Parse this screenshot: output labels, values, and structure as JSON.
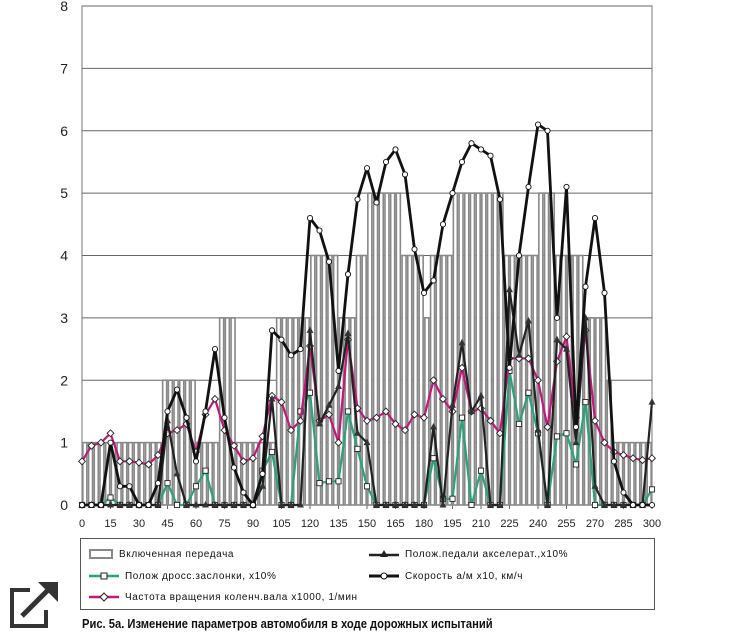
{
  "chart_data": {
    "type": "line",
    "title": "",
    "xlabel": "",
    "ylabel": "",
    "xlim": [
      0,
      300
    ],
    "ylim": [
      0,
      8
    ],
    "x_ticks": [
      0,
      15,
      30,
      45,
      60,
      75,
      90,
      105,
      120,
      135,
      150,
      165,
      180,
      195,
      210,
      225,
      240,
      255,
      270,
      285,
      300
    ],
    "y_ticks": [
      0,
      1,
      2,
      3,
      4,
      5,
      6,
      7,
      8
    ],
    "grid": "horizontal",
    "legend_position": "bottom",
    "colors": {
      "gear": "#888888",
      "pedal": "#222222",
      "throttle": "#2aa37a",
      "speed": "#111111",
      "rpm": "#c2187a"
    },
    "series": [
      {
        "key": "gear",
        "name": "Включенная передача",
        "type": "bar",
        "x": [
          0,
          3,
          6,
          9,
          12,
          15,
          18,
          21,
          24,
          27,
          30,
          33,
          36,
          39,
          42,
          45,
          48,
          51,
          54,
          57,
          60,
          63,
          66,
          69,
          72,
          75,
          78,
          81,
          84,
          87,
          90,
          93,
          96,
          99,
          102,
          105,
          108,
          111,
          114,
          117,
          120,
          123,
          126,
          129,
          132,
          135,
          138,
          141,
          144,
          147,
          150,
          153,
          156,
          159,
          162,
          165,
          168,
          171,
          174,
          177,
          180,
          183,
          186,
          189,
          192,
          195,
          198,
          201,
          204,
          207,
          210,
          213,
          216,
          219,
          222,
          225,
          228,
          231,
          234,
          237,
          240,
          243,
          246,
          249,
          252,
          255,
          258,
          261,
          264,
          267,
          270,
          273,
          276,
          279,
          282,
          285,
          288,
          291,
          294,
          297
        ],
        "values": [
          1,
          1,
          1,
          1,
          1,
          1,
          1,
          1,
          1,
          1,
          1,
          1,
          1,
          1,
          2,
          2,
          2,
          2,
          2,
          2,
          1,
          1,
          1,
          1,
          3,
          3,
          3,
          1,
          1,
          1,
          1,
          1,
          1,
          1,
          3,
          3,
          3,
          3,
          3,
          3,
          4,
          4,
          4,
          4,
          4,
          3,
          3,
          3,
          4,
          4,
          5,
          5,
          5,
          5,
          5,
          5,
          4,
          4,
          4,
          4,
          3,
          4,
          4,
          4,
          4,
          5,
          5,
          5,
          5,
          5,
          5,
          5,
          5,
          5,
          4,
          4,
          4,
          4,
          4,
          4,
          5,
          5,
          5,
          4,
          4,
          4,
          4,
          4,
          3,
          3,
          3,
          3,
          2,
          1,
          1,
          1,
          1,
          1,
          1,
          1
        ]
      },
      {
        "key": "pedal",
        "name": "Полож.педали акселерат.,х10%",
        "type": "line",
        "x": [
          0,
          5,
          10,
          15,
          20,
          25,
          30,
          35,
          40,
          45,
          50,
          55,
          60,
          65,
          70,
          75,
          80,
          85,
          90,
          95,
          100,
          105,
          110,
          115,
          120,
          125,
          130,
          135,
          140,
          145,
          150,
          155,
          160,
          165,
          170,
          175,
          180,
          185,
          190,
          195,
          200,
          205,
          210,
          215,
          220,
          225,
          230,
          235,
          240,
          245,
          250,
          255,
          260,
          265,
          270,
          275,
          280,
          285,
          290,
          295,
          300
        ],
        "values": [
          0,
          0,
          0,
          0,
          0,
          0,
          0,
          0,
          0,
          1.35,
          0.5,
          0,
          0,
          0,
          0,
          0,
          0,
          0,
          0,
          0.3,
          1.7,
          0,
          0,
          0,
          2.8,
          1.3,
          1.6,
          1.9,
          2.75,
          1.15,
          1.0,
          0,
          0,
          0,
          0,
          0,
          0,
          1.25,
          0,
          1.6,
          2.6,
          1.5,
          1.75,
          0,
          0,
          3.45,
          2.4,
          2.95,
          1.2,
          0,
          2.65,
          2.5,
          1.0,
          3.0,
          0.3,
          0,
          0,
          0,
          0,
          0,
          1.65
        ]
      },
      {
        "key": "throttle",
        "name": "Полож дросс.заслонки, х10%",
        "type": "line",
        "x": [
          0,
          5,
          10,
          15,
          20,
          25,
          30,
          35,
          40,
          45,
          50,
          55,
          60,
          65,
          70,
          75,
          80,
          85,
          90,
          95,
          100,
          105,
          110,
          115,
          120,
          125,
          130,
          135,
          140,
          145,
          150,
          155,
          160,
          165,
          170,
          175,
          180,
          185,
          190,
          195,
          200,
          205,
          210,
          215,
          220,
          225,
          230,
          235,
          240,
          245,
          250,
          255,
          260,
          265,
          270,
          275,
          280,
          285,
          290,
          295,
          300
        ],
        "values": [
          0,
          0,
          0,
          0.12,
          0,
          0,
          0,
          0,
          0,
          0.35,
          0,
          0,
          0.3,
          0.55,
          0,
          0,
          0,
          0,
          0,
          0.55,
          0.85,
          0,
          0,
          1.5,
          1.8,
          0.35,
          0.38,
          0.38,
          1.5,
          0.9,
          0.3,
          0,
          0,
          0,
          0,
          0,
          0,
          0.75,
          0.1,
          0.1,
          1.4,
          0,
          0.55,
          0,
          0,
          2.15,
          1.3,
          1.8,
          1.15,
          0,
          1.1,
          1.15,
          0.65,
          1.65,
          0,
          0,
          0,
          0,
          0,
          0,
          0.25
        ]
      },
      {
        "key": "speed",
        "name": "Скорость а/м х10, км/ч",
        "type": "line",
        "x": [
          0,
          5,
          10,
          15,
          20,
          25,
          30,
          35,
          40,
          45,
          50,
          55,
          60,
          65,
          70,
          75,
          80,
          85,
          90,
          95,
          100,
          105,
          110,
          115,
          120,
          125,
          130,
          135,
          140,
          145,
          150,
          155,
          160,
          165,
          170,
          175,
          180,
          185,
          190,
          195,
          200,
          205,
          210,
          215,
          220,
          225,
          230,
          235,
          240,
          245,
          250,
          255,
          260,
          265,
          270,
          275,
          280,
          285,
          290,
          295,
          300
        ],
        "values": [
          0,
          0,
          0,
          1.0,
          0.3,
          0.3,
          0,
          0,
          0.35,
          1.5,
          1.85,
          1.4,
          0.7,
          1.5,
          2.5,
          1.4,
          0.6,
          0.2,
          0,
          0.5,
          2.8,
          2.65,
          2.4,
          2.5,
          4.6,
          4.4,
          3.9,
          2.15,
          3.7,
          4.9,
          5.4,
          4.85,
          5.5,
          5.7,
          5.3,
          4.1,
          3.4,
          3.6,
          4.5,
          5.0,
          5.5,
          5.8,
          5.7,
          5.6,
          4.9,
          2.2,
          4.0,
          5.1,
          6.1,
          6.0,
          3.0,
          5.1,
          1.25,
          3.5,
          4.6,
          3.4,
          0.7,
          0.2,
          0,
          0,
          0
        ]
      },
      {
        "key": "rpm",
        "name": "Частота вращения коленч.вала х1000, 1/мин",
        "type": "line",
        "x": [
          0,
          5,
          10,
          15,
          20,
          25,
          30,
          35,
          40,
          45,
          50,
          55,
          60,
          65,
          70,
          75,
          80,
          85,
          90,
          95,
          100,
          105,
          110,
          115,
          120,
          125,
          130,
          135,
          140,
          145,
          150,
          155,
          160,
          165,
          170,
          175,
          180,
          185,
          190,
          195,
          200,
          205,
          210,
          215,
          220,
          225,
          230,
          235,
          240,
          245,
          250,
          255,
          260,
          265,
          270,
          275,
          280,
          285,
          290,
          295,
          300
        ],
        "values": [
          0.7,
          0.95,
          1.0,
          1.15,
          0.7,
          0.7,
          0.68,
          0.65,
          0.8,
          1.15,
          1.2,
          1.3,
          0.85,
          1.45,
          1.7,
          1.2,
          0.95,
          0.7,
          0.75,
          1.1,
          1.75,
          1.65,
          1.2,
          1.35,
          2.55,
          1.35,
          1.45,
          1.0,
          2.65,
          1.55,
          1.35,
          1.4,
          1.5,
          1.3,
          1.2,
          1.45,
          1.4,
          2.0,
          1.7,
          1.5,
          2.2,
          1.5,
          1.55,
          1.35,
          1.15,
          2.35,
          2.35,
          2.35,
          2.0,
          1.25,
          2.3,
          2.7,
          1.4,
          2.8,
          1.35,
          1.0,
          0.85,
          0.8,
          0.75,
          0.72,
          0.75
        ]
      }
    ]
  },
  "caption": "Рис. 5а. Изменение параметров автомобиля в ходе дорожных испытаний"
}
